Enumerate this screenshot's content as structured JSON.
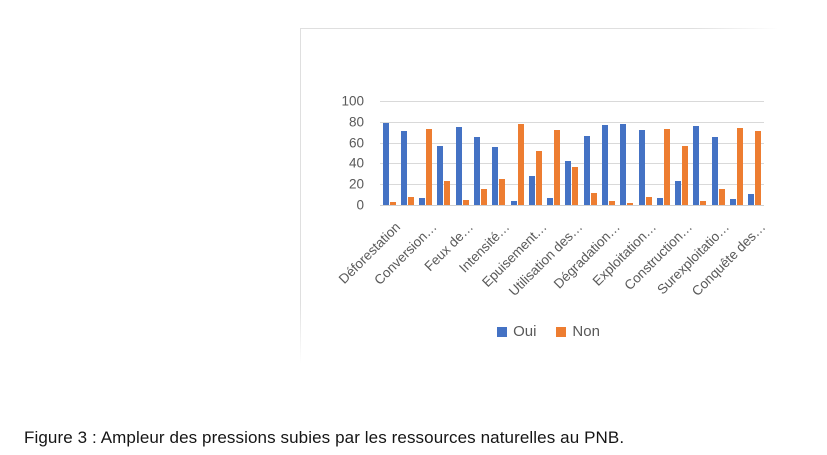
{
  "caption": "Figure 3 : Ampleur des pressions subies par les ressources naturelles au PNB.",
  "colors": {
    "oui": "#4472C4",
    "non": "#ED7D31",
    "axis_text": "#595959",
    "gridline": "#D9D9D9",
    "frame_border": "#DFDFDF"
  },
  "legend": {
    "items": [
      {
        "label": "Oui",
        "color": "#4472C4"
      },
      {
        "label": "Non",
        "color": "#ED7D31"
      }
    ]
  },
  "chart_data": {
    "type": "bar",
    "title": "",
    "xlabel": "",
    "ylabel": "",
    "ylim": [
      0,
      100
    ],
    "yticks": [
      0,
      20,
      40,
      60,
      80,
      100
    ],
    "grid": true,
    "legend_position": "bottom",
    "label_interval_note": "axis shows every 2nd category label",
    "categories": [
      "Déforestation",
      "",
      "Conversion…",
      "",
      "Feux de…",
      "",
      "Intensité…",
      "",
      "Epuisement…",
      "",
      "Utilisation des…",
      "",
      "Dégradation…",
      "",
      "Exploitation…",
      "",
      "Construction…",
      "",
      "Surexploitatio…",
      "",
      "Conquête des…"
    ],
    "series": [
      {
        "name": "Oui",
        "color": "#4472C4",
        "values": [
          79,
          71,
          7,
          57,
          75,
          65,
          56,
          4,
          28,
          7,
          42,
          66,
          77,
          78,
          72,
          7,
          23,
          76,
          65,
          6,
          11
        ]
      },
      {
        "name": "Non",
        "color": "#ED7D31",
        "values": [
          3,
          8,
          73,
          23,
          5,
          15,
          25,
          78,
          52,
          72,
          37,
          12,
          4,
          2,
          8,
          73,
          57,
          4,
          15,
          74,
          71
        ]
      }
    ]
  }
}
